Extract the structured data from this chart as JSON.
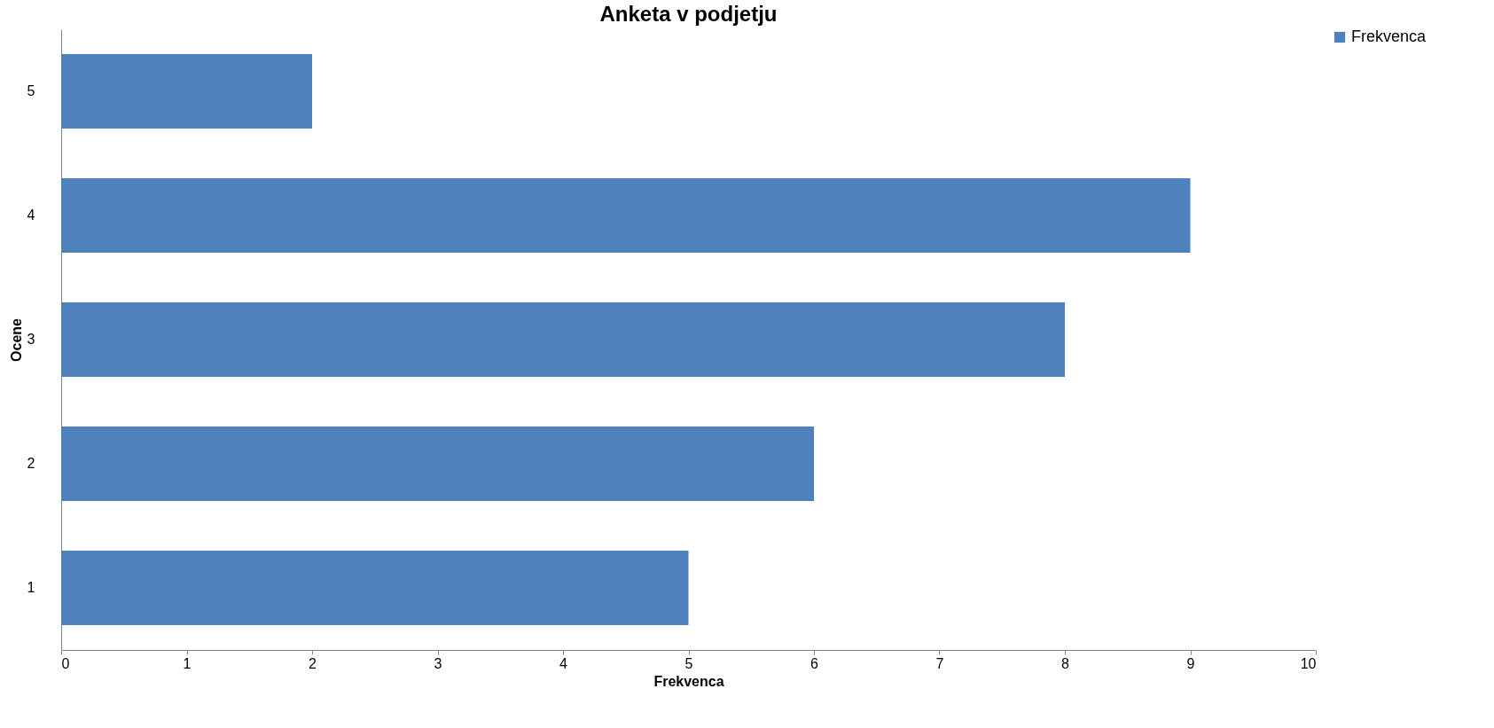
{
  "chart_data": {
    "type": "bar",
    "orientation": "horizontal",
    "title": "Anketa v podjetju",
    "xlabel": "Frekvenca",
    "ylabel": "Ocene",
    "categories": [
      "5",
      "4",
      "3",
      "2",
      "1"
    ],
    "series": [
      {
        "name": "Frekvenca",
        "color": "#4f81bd",
        "values": [
          2,
          9,
          8,
          6,
          5
        ]
      }
    ],
    "xlim": [
      0,
      10
    ],
    "xticks": [
      0,
      1,
      2,
      3,
      4,
      5,
      6,
      7,
      8,
      9,
      10
    ],
    "legend": "right"
  }
}
